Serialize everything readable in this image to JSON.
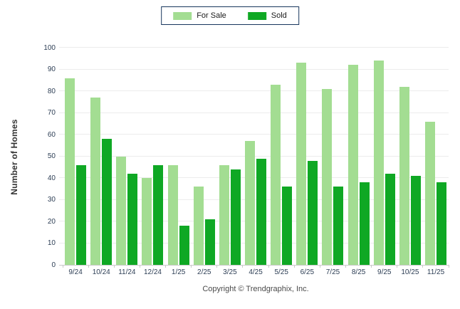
{
  "chart_data": {
    "type": "bar",
    "title": "",
    "ylabel": "Number of Homes",
    "xlabel": "",
    "ylim": [
      0,
      100
    ],
    "ytick_step": 10,
    "grid": true,
    "legend_position": "top-center",
    "categories": [
      "9/24",
      "10/24",
      "11/24",
      "12/24",
      "1/25",
      "2/25",
      "3/25",
      "4/25",
      "5/25",
      "6/25",
      "7/25",
      "8/25",
      "9/25",
      "10/25",
      "11/25"
    ],
    "series": [
      {
        "name": "For Sale",
        "color": "#a3dd92",
        "values": [
          86,
          77,
          50,
          40,
          46,
          36,
          46,
          57,
          83,
          93,
          81,
          92,
          94,
          82,
          66
        ]
      },
      {
        "name": "Sold",
        "color": "#0fa824",
        "values": [
          46,
          58,
          42,
          46,
          18,
          21,
          44,
          49,
          36,
          48,
          36,
          38,
          42,
          41,
          38
        ]
      }
    ],
    "colors": {
      "gridline": "#ececec",
      "axis_line": "#c9c9c9",
      "tick_label": "#2d3e55",
      "legend_border": "#17365d"
    }
  },
  "footer": {
    "copyright": "Copyright © Trendgraphix, Inc."
  }
}
